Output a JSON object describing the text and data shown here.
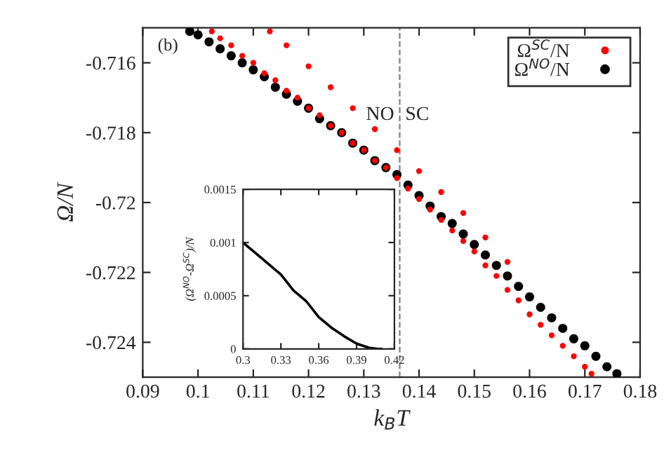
{
  "chart_data": [
    {
      "type": "scatter",
      "xlabel": "k$_{B}$T",
      "ylabel": "Ω/N",
      "xlim": [
        0.09,
        0.18
      ],
      "ylim": [
        -0.725,
        -0.715
      ],
      "xticks": [
        0.09,
        0.1,
        0.11,
        0.12,
        0.13,
        0.14,
        0.15,
        0.16,
        0.17,
        0.18
      ],
      "yticks": [
        -0.716,
        -0.718,
        -0.72,
        -0.722,
        -0.724
      ],
      "series": [
        {
          "name": "Ω$^{SC}$/N",
          "color": "#ff0000",
          "x": [
            0.1025,
            0.104,
            0.106,
            0.108,
            0.11,
            0.112,
            0.114,
            0.116,
            0.118,
            0.12,
            0.122,
            0.124,
            0.126,
            0.128,
            0.13,
            0.132,
            0.134,
            0.136,
            0.138,
            0.14,
            0.142,
            0.144,
            0.146,
            0.148,
            0.15,
            0.152,
            0.154,
            0.156,
            0.158,
            0.16,
            0.162,
            0.164,
            0.166,
            0.168,
            0.17,
            0.1712,
            0.113,
            0.116,
            0.12,
            0.124,
            0.128,
            0.132,
            0.136,
            0.14,
            0.144,
            0.148,
            0.152,
            0.156
          ],
          "values": [
            -0.7151,
            -0.7153,
            -0.7155,
            -0.7158,
            -0.716,
            -0.7163,
            -0.7165,
            -0.7168,
            -0.717,
            -0.7173,
            -0.7175,
            -0.7178,
            -0.718,
            -0.7183,
            -0.7185,
            -0.7188,
            -0.719,
            -0.7193,
            -0.7196,
            -0.7199,
            -0.7202,
            -0.7205,
            -0.7208,
            -0.7211,
            -0.7214,
            -0.7218,
            -0.7221,
            -0.7225,
            -0.7228,
            -0.7232,
            -0.7235,
            -0.7238,
            -0.7241,
            -0.7244,
            -0.7247,
            -0.7249,
            -0.7151,
            -0.7155,
            -0.7161,
            -0.7167,
            -0.7173,
            -0.7179,
            -0.7185,
            -0.7191,
            -0.7197,
            -0.7203,
            -0.721,
            -0.7217
          ]
        },
        {
          "name": "Ω$^{NO}$/N",
          "color": "#000000",
          "x": [
            0.0985,
            0.1,
            0.102,
            0.104,
            0.106,
            0.108,
            0.11,
            0.112,
            0.114,
            0.116,
            0.118,
            0.12,
            0.122,
            0.124,
            0.126,
            0.128,
            0.13,
            0.132,
            0.134,
            0.136,
            0.138,
            0.14,
            0.142,
            0.144,
            0.146,
            0.148,
            0.15,
            0.152,
            0.154,
            0.156,
            0.158,
            0.16,
            0.162,
            0.164,
            0.166,
            0.168,
            0.17,
            0.172,
            0.174,
            0.1758
          ],
          "values": [
            -0.7151,
            -0.7152,
            -0.7154,
            -0.7156,
            -0.7158,
            -0.716,
            -0.7162,
            -0.7164,
            -0.7167,
            -0.7169,
            -0.7171,
            -0.7173,
            -0.7176,
            -0.7178,
            -0.718,
            -0.7183,
            -0.7185,
            -0.7188,
            -0.719,
            -0.7192,
            -0.7195,
            -0.7198,
            -0.7201,
            -0.7204,
            -0.7206,
            -0.7209,
            -0.7212,
            -0.7215,
            -0.7218,
            -0.7221,
            -0.7224,
            -0.7227,
            -0.723,
            -0.7233,
            -0.7236,
            -0.7239,
            -0.7241,
            -0.7244,
            -0.7247,
            -0.7249
          ]
        }
      ],
      "ref_lines": [
        {
          "axis": "x",
          "value": 0.1365,
          "color": "#808080",
          "line_style": "dashed"
        }
      ],
      "annotations": [
        "(b)",
        {
          "text": "NO",
          "x": 0.1355,
          "y": -0.7175
        },
        {
          "text": "SC",
          "x": 0.1375,
          "y": -0.7175
        }
      ],
      "legend": "top right",
      "marker": "circle",
      "grid": false
    },
    {
      "type": "line",
      "ylabel": "(Ω$^{NO}$-Ω$^{SC}$)/N",
      "xlim": [
        0.3,
        0.42
      ],
      "ylim": [
        0,
        0.0015
      ],
      "xticks": [
        0.3,
        0.33,
        0.36,
        0.39,
        0.42
      ],
      "yticks": [
        0,
        0.0005,
        0.001,
        0.0015
      ],
      "series": [
        {
          "color": "#000000",
          "x": [
            0.3,
            0.31,
            0.32,
            0.33,
            0.34,
            0.35,
            0.36,
            0.37,
            0.38,
            0.39,
            0.4,
            0.407,
            0.41
          ],
          "values": [
            0.001,
            0.0009,
            0.0008,
            0.0007,
            0.00055,
            0.00045,
            0.0003,
            0.0002,
            0.00012,
            5e-05,
            1e-05,
            0,
            0
          ]
        }
      ],
      "legend": false,
      "grid": false,
      "line_style": "solid",
      "marker": "none"
    }
  ]
}
